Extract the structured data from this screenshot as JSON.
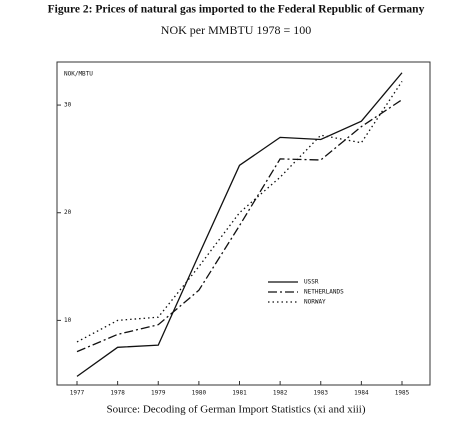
{
  "chart_data": {
    "type": "line",
    "title": "Figure 2: Prices of natural gas imported to the Federal Republic of Germany",
    "subtitle": "NOK per MMBTU 1978 = 100",
    "y_axis_label": "NOK/MBTU",
    "source": "Source: Decoding of German Import Statistics (xi and xiii)",
    "categories": [
      "1977",
      "1978",
      "1979",
      "1980",
      "1981",
      "1982",
      "1983",
      "1984",
      "1985"
    ],
    "series": [
      {
        "name": "USSR",
        "color": "#111111",
        "dash": "none",
        "values": [
          4.8,
          7.5,
          7.7,
          16.1,
          24.4,
          27.0,
          26.8,
          28.5,
          33.0
        ]
      },
      {
        "name": "NETHERLANDS",
        "color": "#111111",
        "dash": "9 3 2 3",
        "values": [
          7.1,
          8.7,
          9.6,
          12.8,
          18.8,
          25.0,
          24.9,
          28.0,
          30.5
        ]
      },
      {
        "name": "NORWAY",
        "color": "#111111",
        "dash": "1.5 3",
        "values": [
          8.0,
          10.0,
          10.3,
          15.0,
          20.0,
          23.3,
          27.2,
          26.5,
          32.2
        ]
      }
    ],
    "ylim": [
      4,
      34
    ],
    "yticks": [
      10,
      20,
      30
    ],
    "legend": "lower-right"
  }
}
